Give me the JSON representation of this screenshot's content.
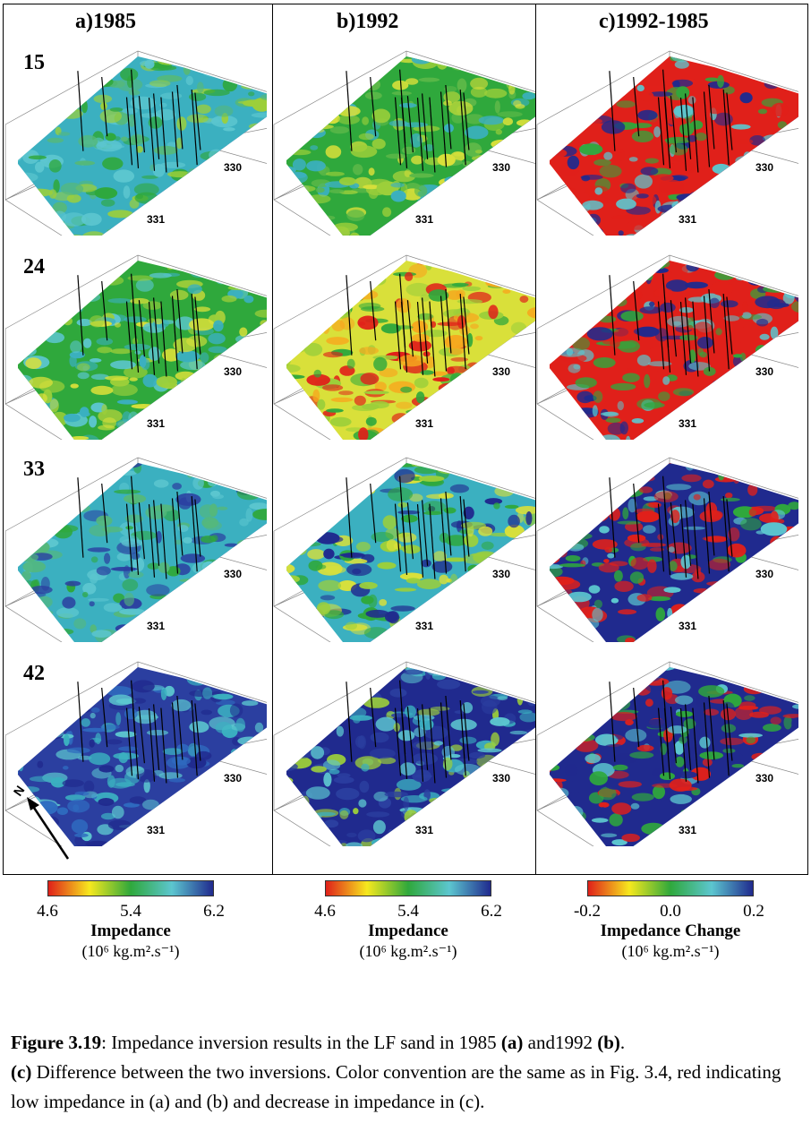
{
  "columns": [
    {
      "title": "a)1985",
      "type": "impedance"
    },
    {
      "title": "b)1992",
      "type": "impedance"
    },
    {
      "title": "c)1992-1985",
      "type": "change"
    }
  ],
  "rows": [
    "15",
    "24",
    "33",
    "42"
  ],
  "axis_labels": {
    "x1": "330",
    "x2": "331"
  },
  "north_label": "N",
  "legends": [
    {
      "ticks": [
        "4.6",
        "5.4",
        "6.2"
      ],
      "title": "Impedance",
      "unit": "(10⁶ kg.m².s⁻¹)",
      "colors": [
        "#e0201a",
        "#f6e81e",
        "#2fa83c",
        "#5cc6cf",
        "#202a8e"
      ]
    },
    {
      "ticks": [
        "4.6",
        "5.4",
        "6.2"
      ],
      "title": "Impedance",
      "unit": "(10⁶ kg.m².s⁻¹)",
      "colors": [
        "#e0201a",
        "#f6e81e",
        "#2fa83c",
        "#5cc6cf",
        "#202a8e"
      ]
    },
    {
      "ticks": [
        "-0.2",
        "0.0",
        "0.2"
      ],
      "title": "Impedance Change",
      "unit": "(10⁶ kg.m².s⁻¹)",
      "colors": [
        "#e0201a",
        "#f6e81e",
        "#2fa83c",
        "#5cc6cf",
        "#202a8e"
      ]
    }
  ],
  "caption": {
    "label": "Figure 3.19",
    "text1": ": Impedance inversion results in the LF sand in 1985 ",
    "a": "(a)",
    "text2": " and1992 ",
    "b": "(b)",
    "text3": ".",
    "c": "(c)",
    "text4": " Difference between the two inversions. Color convention are the same as in Fig. 3.4, red indicating low impedance in (a) and (b) and decrease in impedance in (c)."
  }
}
